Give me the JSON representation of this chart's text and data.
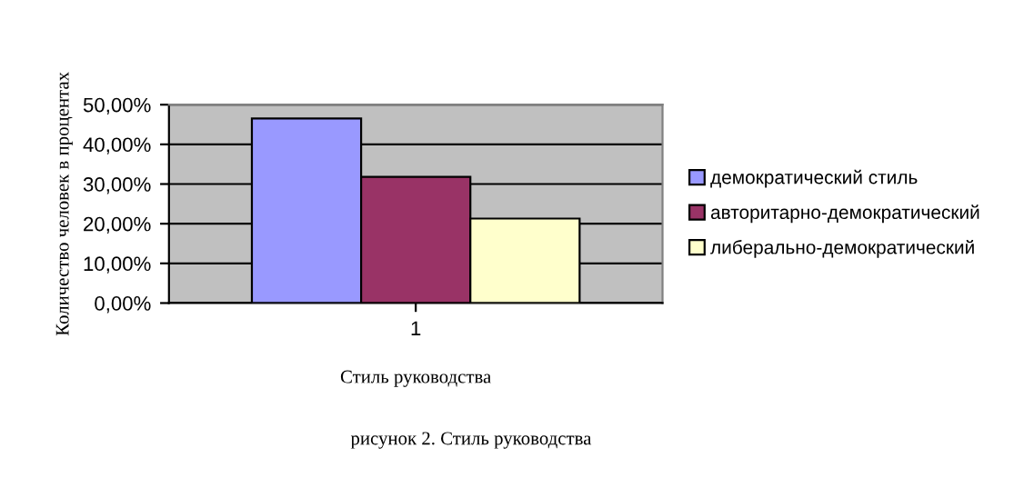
{
  "chart_data": {
    "type": "bar",
    "categories": [
      "1"
    ],
    "xlabel": "Стиль руководства",
    "ylabel": "Количество человек в процентах",
    "ylim": [
      0,
      50
    ],
    "yticks": [
      {
        "value": 0,
        "label": "0,00%"
      },
      {
        "value": 10,
        "label": "10,00%"
      },
      {
        "value": 20,
        "label": "20,00%"
      },
      {
        "value": 30,
        "label": "30,00%"
      },
      {
        "value": 40,
        "label": "40,00%"
      },
      {
        "value": 50,
        "label": "50,00%"
      }
    ],
    "series": [
      {
        "name": "демократический стиль",
        "color": "#9999ff",
        "values": [
          46.5
        ]
      },
      {
        "name": "авторитарно-демократический",
        "color": "#993366",
        "values": [
          31.8
        ]
      },
      {
        "name": "либерально-демократический",
        "color": "#ffffcc",
        "values": [
          21.3
        ]
      }
    ],
    "grid": "y",
    "legend": "right",
    "annotations": [
      "рисунок 2. Стиль руководства"
    ]
  }
}
